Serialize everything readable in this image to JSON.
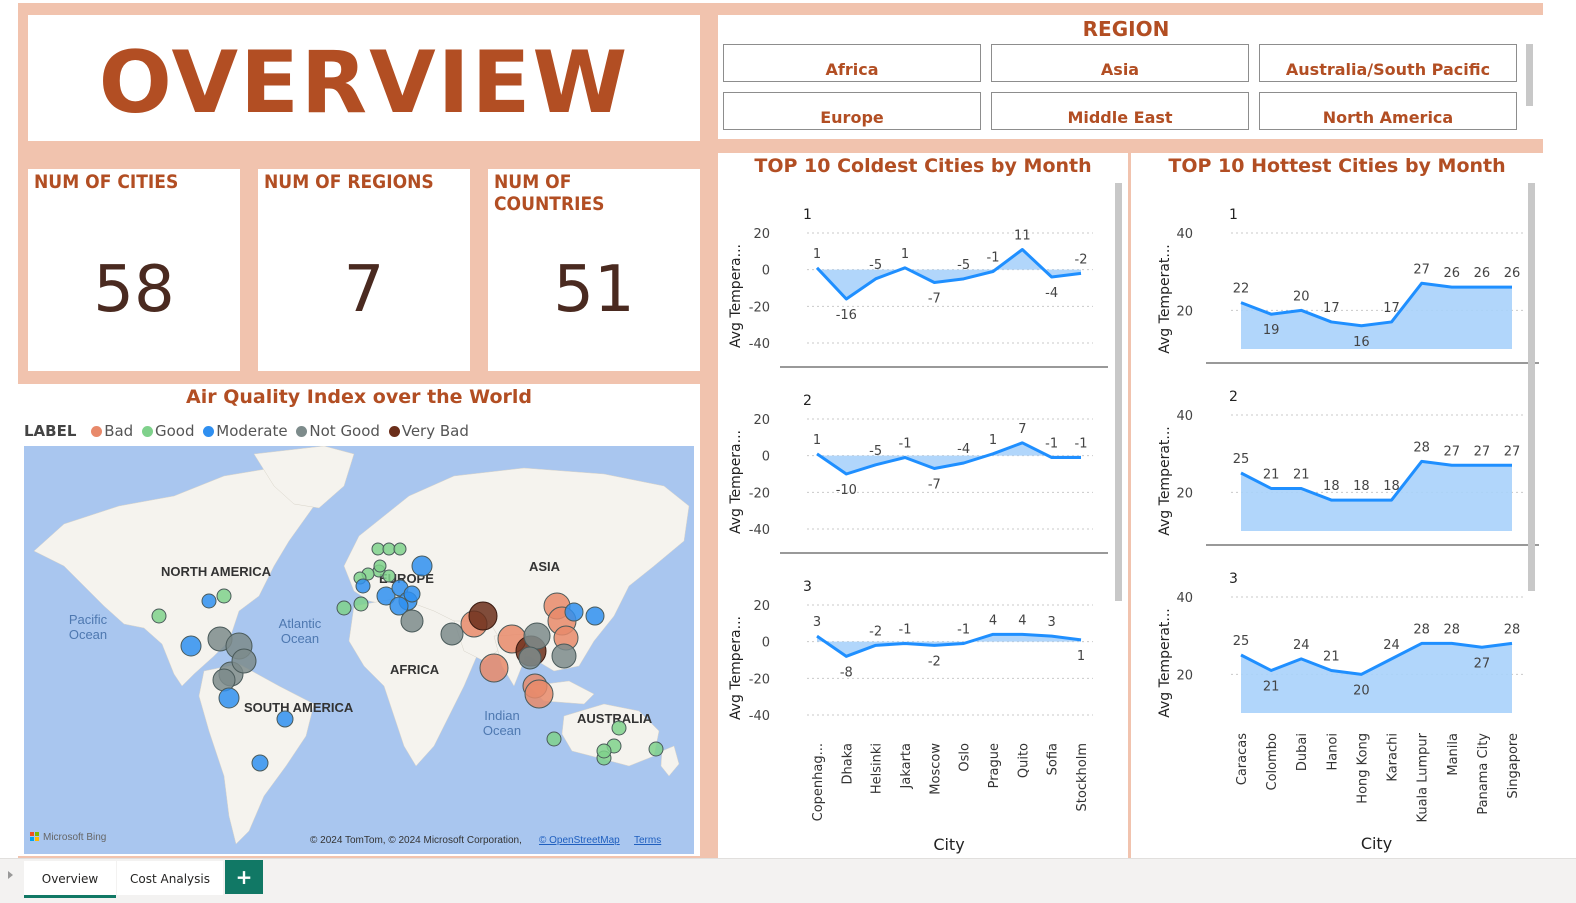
{
  "header": {
    "title": "OVERVIEW"
  },
  "kpis": [
    {
      "label": "NUM OF CITIES",
      "value": "58"
    },
    {
      "label": "NUM OF REGIONS",
      "value": "7"
    },
    {
      "label": "NUM OF COUNTRIES",
      "value": "51"
    }
  ],
  "region_slicer": {
    "title": "REGION",
    "options": [
      "Africa",
      "Asia",
      "Australia/South Pacific",
      "Europe",
      "Middle East",
      "North America"
    ]
  },
  "map": {
    "title": "Air Quality Index over the World",
    "legend_title": "LABEL",
    "legend": [
      {
        "name": "Bad",
        "color": "#e8896a"
      },
      {
        "name": "Good",
        "color": "#7fd18b"
      },
      {
        "name": "Moderate",
        "color": "#2f8ff0"
      },
      {
        "name": "Not Good",
        "color": "#7d8b8b"
      },
      {
        "name": "Very Bad",
        "color": "#6b2e1a"
      }
    ],
    "place_labels": {
      "north_america": "NORTH AMERICA",
      "south_america": "SOUTH AMERICA",
      "europe": "EUROPE",
      "africa": "AFRICA",
      "asia": "ASIA",
      "australia": "AUSTRALIA",
      "pacific": "Pacific\nOcean",
      "atlantic": "Atlantic\nOcean",
      "indian": "Indian\nOcean"
    },
    "attribution_left": "Microsoft Bing",
    "attribution_right": "© 2024 TomTom, © 2024 Microsoft Corporation,",
    "osm_link": "© OpenStreetMap",
    "terms_link": "Terms",
    "colors": {
      "ocean": "#a9c6ef",
      "land": "#f5f3ee"
    }
  },
  "cold_chart": {
    "title": "TOP 10 Coldest Cities by Month",
    "ylabel": "Avg Tempera...",
    "xlabel": "City",
    "categories": [
      "Copenhag...",
      "Dhaka",
      "Helsinki",
      "Jakarta",
      "Moscow",
      "Oslo",
      "Prague",
      "Quito",
      "Sofia",
      "Stockholm"
    ],
    "yticks": [
      20,
      0,
      -20,
      -40
    ],
    "panels": [
      {
        "name": "1",
        "values": [
          1,
          -16,
          -5,
          1,
          -7,
          -5,
          -1,
          11,
          -4,
          -2
        ]
      },
      {
        "name": "2",
        "values": [
          1,
          -10,
          -5,
          -1,
          -7,
          -4,
          1,
          7,
          -1,
          -1
        ]
      },
      {
        "name": "3",
        "values": [
          3,
          -8,
          -2,
          -1,
          -2,
          -1,
          4,
          4,
          3,
          1
        ]
      }
    ]
  },
  "hot_chart": {
    "title": "TOP 10 Hottest Cities by Month",
    "ylabel": "Avg Temperat...",
    "xlabel": "City",
    "categories": [
      "Caracas",
      "Colombo",
      "Dubai",
      "Hanoi",
      "Hong Kong",
      "Karachi",
      "Kuala Lumpur",
      "Manila",
      "Panama City",
      "Singapore"
    ],
    "yticks": [
      40,
      20
    ],
    "panels": [
      {
        "name": "1",
        "values": [
          22,
          19,
          20,
          17,
          16,
          17,
          27,
          26,
          26,
          26
        ]
      },
      {
        "name": "2",
        "values": [
          25,
          21,
          21,
          18,
          18,
          18,
          28,
          27,
          27,
          27
        ]
      },
      {
        "name": "3",
        "values": [
          25,
          21,
          24,
          21,
          20,
          24,
          28,
          28,
          27,
          28
        ]
      }
    ]
  },
  "chart_data": [
    {
      "type": "area",
      "title": "TOP 10 Coldest Cities by Month",
      "xlabel": "City",
      "ylabel": "Avg Tempera...",
      "categories": [
        "Copenhag...",
        "Dhaka",
        "Helsinki",
        "Jakarta",
        "Moscow",
        "Oslo",
        "Prague",
        "Quito",
        "Sofia",
        "Stockholm"
      ],
      "ylim": [
        -40,
        20
      ],
      "series": [
        {
          "name": "1",
          "values": [
            1,
            -16,
            -5,
            1,
            -7,
            -5,
            -1,
            11,
            -4,
            -2
          ]
        },
        {
          "name": "2",
          "values": [
            1,
            -10,
            -5,
            -1,
            -7,
            -4,
            1,
            7,
            -1,
            -1
          ]
        },
        {
          "name": "3",
          "values": [
            3,
            -8,
            -2,
            -1,
            -2,
            -1,
            4,
            4,
            3,
            1
          ]
        }
      ]
    },
    {
      "type": "area",
      "title": "TOP 10 Hottest Cities by Month",
      "xlabel": "City",
      "ylabel": "Avg Temperat...",
      "categories": [
        "Caracas",
        "Colombo",
        "Dubai",
        "Hanoi",
        "Hong Kong",
        "Karachi",
        "Kuala Lumpur",
        "Manila",
        "Panama City",
        "Singapore"
      ],
      "ylim": [
        10,
        40
      ],
      "series": [
        {
          "name": "1",
          "values": [
            22,
            19,
            20,
            17,
            16,
            17,
            27,
            26,
            26,
            26
          ]
        },
        {
          "name": "2",
          "values": [
            25,
            21,
            21,
            18,
            18,
            18,
            28,
            27,
            27,
            27
          ]
        },
        {
          "name": "3",
          "values": [
            25,
            21,
            24,
            21,
            20,
            24,
            28,
            28,
            27,
            28
          ]
        }
      ]
    }
  ],
  "tabs": {
    "overview": "Overview",
    "cost": "Cost Analysis",
    "add": "+"
  },
  "colors": {
    "accent": "#b24e23",
    "line": "#1f8fff",
    "area": "#a8d2fb",
    "frame": "#f1c3ae",
    "tab_active": "#117865"
  }
}
